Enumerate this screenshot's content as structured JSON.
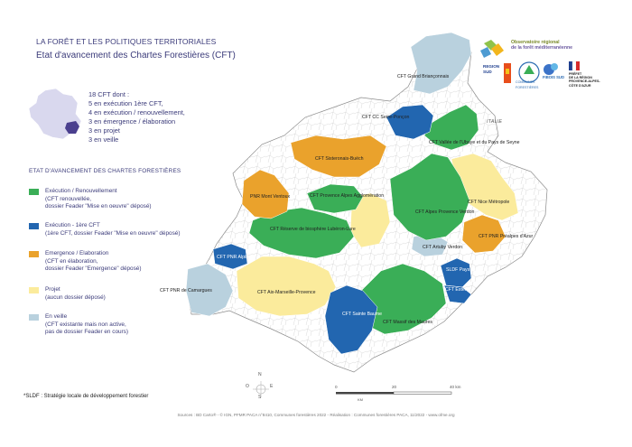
{
  "header": {
    "line1": "LA FORÊT ET LES POLITIQUES TERRITORIALES",
    "line2": "Etat d'avancement des Chartes Forestières (CFT)"
  },
  "summary": [
    "18 CFT dont :",
    "5 en exécution 1ère CFT,",
    "4 en exécution / renouvellement,",
    "3 en émergence / élaboration",
    "3 en projet",
    "3 en veille"
  ],
  "legend": {
    "title": "ETAT D'AVANCEMENT DES CHARTES FORESTIÈRES",
    "items": [
      {
        "lines": [
          "Exécution / Renouvellement",
          "(CFT renouvellée,",
          "dossier Feader \"Mise en oeuvre\" déposé)"
        ],
        "color": "#3aae57"
      },
      {
        "lines": [
          "Exécution - 1ère CFT",
          "(1ère CFT, dossier Feader \"Mise en oeuvre\" déposé)"
        ],
        "color": "#2266b0"
      },
      {
        "lines": [
          "Emergence / Elaboration",
          "(CFT en élaboration,",
          "dossier Feader \"Emergence\" déposé)"
        ],
        "color": "#eaa22c"
      },
      {
        "lines": [
          "Projet",
          "(aucun dossier déposé)"
        ],
        "color": "#fbeb9c"
      },
      {
        "lines": [
          "En veille",
          "(CFT existante mais non active,",
          "pas de dossier Feader en cours)"
        ],
        "color": "#b9d1de"
      }
    ]
  },
  "map": {
    "country_label": "ITALIE",
    "labels": [
      "CFT Grand Briançonnais",
      "CFT CC Serre-Ponçon",
      "CFT Vallée de l'Ubaye et du Pays de Seyne",
      "CFT Sisteronais-Buëch",
      "PNR Mont Ventoux",
      "CFT Provence Alpes Agglomération",
      "CFT Nice Métropole",
      "CFT Alpes Provence Verdon",
      "CFT Réserve de biosphère Lubéron-Lure",
      "CFT PNR Préalpes d'Azur",
      "CFT Artuby Verdon",
      "CFT PNR Alpilles",
      "SLDF Pays de Fayence",
      "CFT Esterel",
      "CFT PNR de Camargues",
      "CFT Aix-Marseille-Provence",
      "CFT Sainte Baume",
      "CFT Massif des Maures"
    ],
    "scale": {
      "ticks": [
        "0",
        "20",
        "40 km"
      ],
      "unit": "KM"
    },
    "compass": {
      "n": "N",
      "s": "S",
      "e": "E",
      "o": "O"
    }
  },
  "logos": {
    "observatoire": [
      "Observatoire régional",
      "de la forêt méditerranéenne"
    ],
    "region": [
      "REGION",
      "SUD"
    ],
    "communes": [
      "COMMUNES",
      "FORESTIÈRES"
    ],
    "fibois": "FIBOIS SUD",
    "prefet": [
      "PRÉFET",
      "DE LA RÉGION",
      "PROVENCE-ALPES-",
      "CÔTE D'AZUR"
    ]
  },
  "footnote": "*SLDF : Stratégie locale de développement forestier",
  "sources": "Sources : BD Carto® - © IGN, PFMR PACA n°8410, Communes forestières 2022 - Réalisation : Communes forestières PACA, 11/2022 - www.ofme.org",
  "colors": {
    "renouvellement": "#3aae57",
    "premiere": "#2266b0",
    "emergence": "#eaa22c",
    "projet": "#fbeb9c",
    "veille": "#b9d1de",
    "title": "#3b3b7a"
  }
}
